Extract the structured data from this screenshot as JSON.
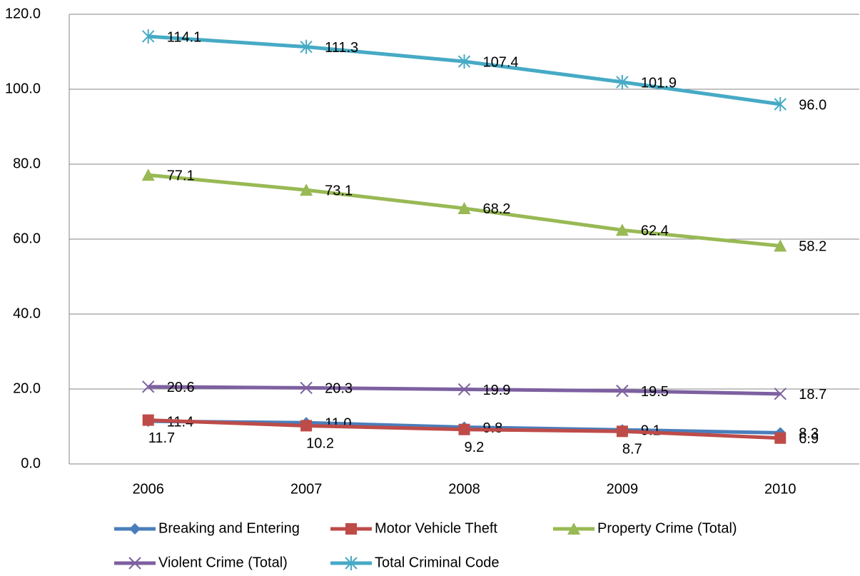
{
  "chart_data": {
    "type": "line",
    "categories": [
      "2006",
      "2007",
      "2008",
      "2009",
      "2010"
    ],
    "series": [
      {
        "name": "Breaking and Entering",
        "color": "#4a7ebb",
        "values": [
          11.4,
          11.0,
          9.8,
          9.1,
          8.3
        ],
        "value_labels": [
          "11.4",
          "11.0",
          "9.8",
          "9.1",
          "8.3"
        ]
      },
      {
        "name": "Motor Vehicle Theft",
        "color": "#be4b48",
        "values": [
          11.7,
          10.2,
          9.2,
          8.7,
          6.9
        ],
        "value_labels": [
          "11.7",
          "10.2",
          "9.2",
          "8.7",
          "6.9"
        ]
      },
      {
        "name": "Property Crime (Total)",
        "color": "#98b954",
        "values": [
          77.1,
          73.1,
          68.2,
          62.4,
          58.2
        ],
        "value_labels": [
          "77.1",
          "73.1",
          "68.2",
          "62.4",
          "58.2"
        ]
      },
      {
        "name": "Violent Crime (Total)",
        "color": "#7d60a0",
        "values": [
          20.6,
          20.3,
          19.9,
          19.5,
          18.7
        ],
        "value_labels": [
          "20.6",
          "20.3",
          "19.9",
          "19.5",
          "18.7"
        ]
      },
      {
        "name": "Total Criminal Code",
        "color": "#46aac5",
        "values": [
          114.1,
          111.3,
          107.4,
          101.9,
          96.0
        ],
        "value_labels": [
          "114.1",
          "111.3",
          "107.4",
          "101.9",
          "96.0"
        ]
      }
    ],
    "ylim": [
      0,
      120
    ],
    "yticks": [
      {
        "value": 0,
        "label": "0.0"
      },
      {
        "value": 20,
        "label": "20.0"
      },
      {
        "value": 40,
        "label": "40.0"
      },
      {
        "value": 60,
        "label": "60.0"
      },
      {
        "value": 80,
        "label": "80.0"
      },
      {
        "value": 100,
        "label": "100.0"
      },
      {
        "value": 120,
        "label": "120.0"
      }
    ],
    "grid": true,
    "legend": "bottom"
  }
}
